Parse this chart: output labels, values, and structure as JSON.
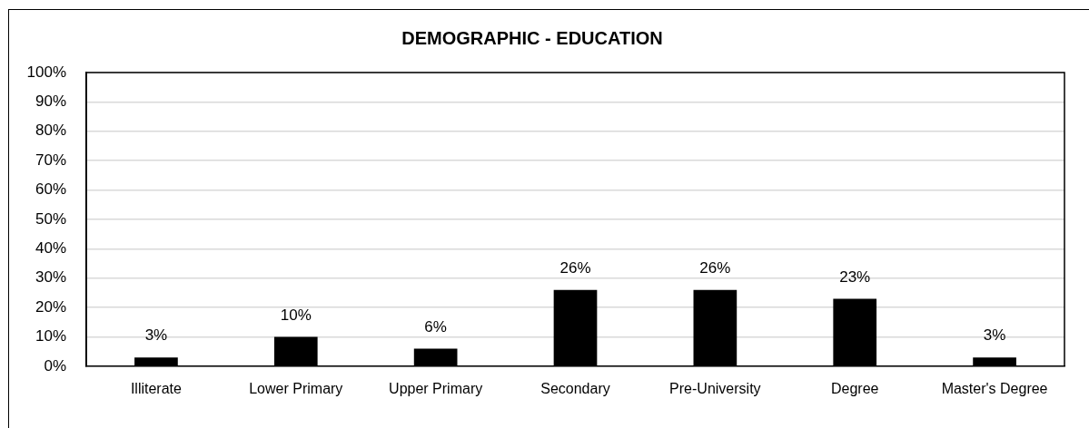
{
  "chart_data": {
    "type": "bar",
    "title": "DEMOGRAPHIC - EDUCATION",
    "categories": [
      "Illiterate",
      "Lower Primary",
      "Upper Primary",
      "Secondary",
      "Pre-University",
      "Degree",
      "Master's Degree"
    ],
    "values": [
      3,
      10,
      6,
      26,
      26,
      23,
      3
    ],
    "color": "#000000",
    "value_labels": [
      "3%",
      "10%",
      "6%",
      "26%",
      "26%",
      "23%",
      "3%"
    ],
    "ylim": [
      0,
      100
    ],
    "yticks": [
      {
        "value": 0,
        "label": "0%"
      },
      {
        "value": 10,
        "label": "10%"
      },
      {
        "value": 20,
        "label": "20%"
      },
      {
        "value": 30,
        "label": "30%"
      },
      {
        "value": 40,
        "label": "40%"
      },
      {
        "value": 50,
        "label": "50%"
      },
      {
        "value": 60,
        "label": "60%"
      },
      {
        "value": 70,
        "label": "70%"
      },
      {
        "value": 80,
        "label": "80%"
      },
      {
        "value": 90,
        "label": "90%"
      },
      {
        "value": 100,
        "label": "100%"
      }
    ],
    "grid": "y"
  }
}
